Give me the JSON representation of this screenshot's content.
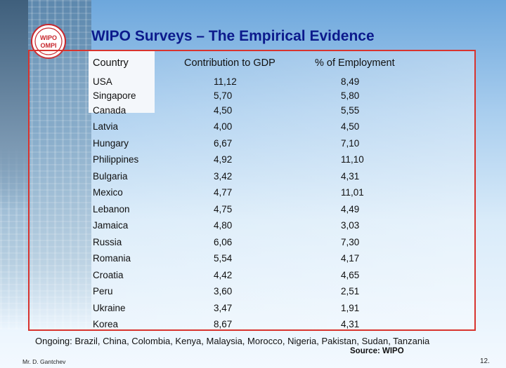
{
  "title": "WIPO Surveys – The Empirical Evidence",
  "logo_text": "WIPO OMPI",
  "table": {
    "headers": {
      "country": "Country",
      "gdp": "Contribution to GDP",
      "employment": "% of Employment"
    },
    "rows": [
      {
        "country": "USA",
        "gdp": "11,12",
        "employment": "8,49"
      },
      {
        "country": "Singapore",
        "gdp": "5,70",
        "employment": "5,80"
      },
      {
        "country": "Canada",
        "gdp": "4,50",
        "employment": "5,55"
      },
      {
        "country": "Latvia",
        "gdp": "4,00",
        "employment": "4,50"
      },
      {
        "country": "Hungary",
        "gdp": "6,67",
        "employment": "7,10"
      },
      {
        "country": "Philippines",
        "gdp": "4,92",
        "employment": "11,10"
      },
      {
        "country": "Bulgaria",
        "gdp": "3,42",
        "employment": "4,31"
      },
      {
        "country": "Mexico",
        "gdp": "4,77",
        "employment": "11,01"
      },
      {
        "country": "Lebanon",
        "gdp": "4,75",
        "employment": "4,49"
      },
      {
        "country": "Jamaica",
        "gdp": "4,80",
        "employment": "3,03"
      },
      {
        "country": "Russia",
        "gdp": "6,06",
        "employment": "7,30"
      },
      {
        "country": "Romania",
        "gdp": "5,54",
        "employment": "4,17"
      },
      {
        "country": "Croatia",
        "gdp": "4,42",
        "employment": "4,65"
      },
      {
        "country": "Peru",
        "gdp": "3,60",
        "employment": "2,51"
      },
      {
        "country": "Ukraine",
        "gdp": "3,47",
        "employment": "1,91"
      },
      {
        "country": "Korea",
        "gdp": "8,67",
        "employment": "4,31"
      }
    ]
  },
  "ongoing": "Ongoing: Brazil, China, Colombia, Kenya, Malaysia, Morocco, Nigeria, Pakistan, Sudan, Tanzania",
  "source": "Source: WIPO",
  "author": "Mr. D. Gantchev",
  "page_number": "12."
}
